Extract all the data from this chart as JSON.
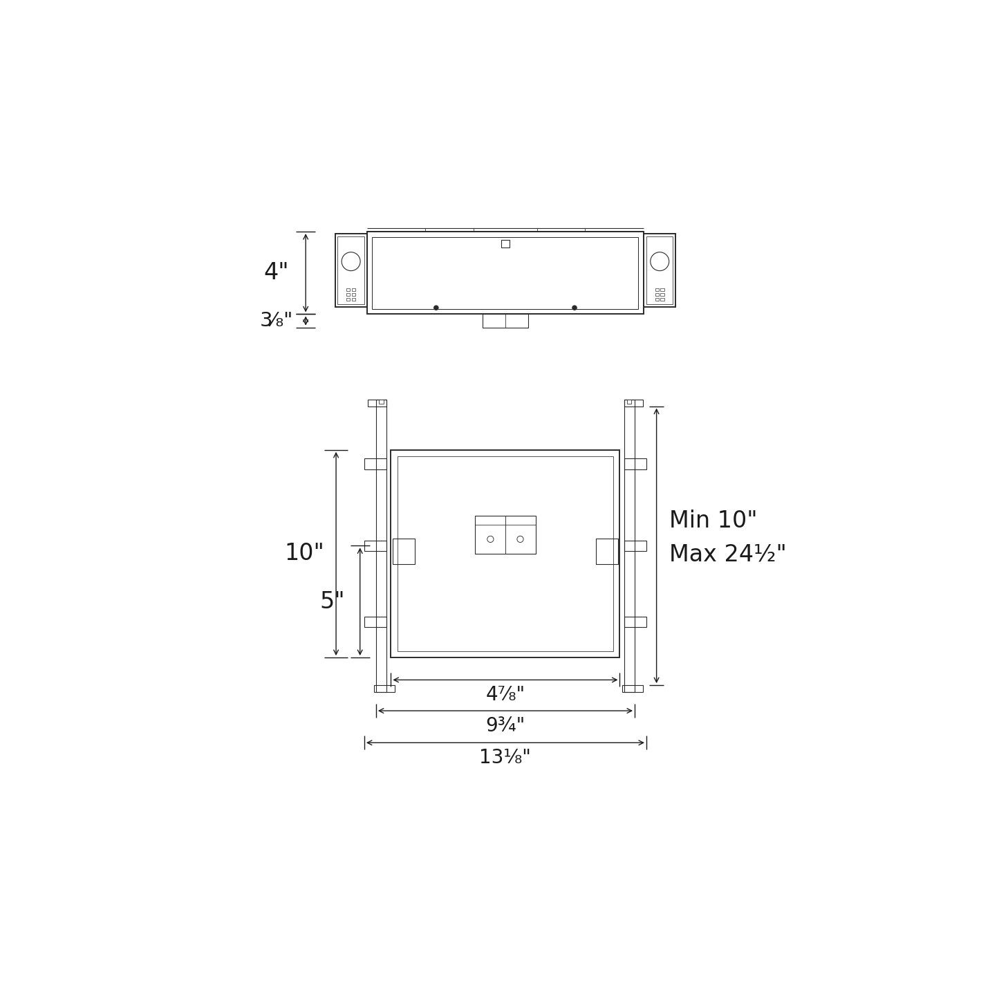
{
  "bg_color": "#ffffff",
  "line_color": "#2a2a2a",
  "dim_color": "#1a1a1a",
  "lw_main": 1.4,
  "lw_thin": 0.8,
  "lw_dim": 1.0,
  "font_size_large": 24,
  "font_size_medium": 20,
  "labels": {
    "dim_4": "4\"",
    "dim_3_8": "3⁄₈\"",
    "dim_10": "10\"",
    "dim_5": "5\"",
    "dim_4_7_8": "4⅞\"",
    "dim_9_3_4": "9¾\"",
    "dim_13_1_8": "13⅛\"",
    "dim_min_max": "Min 10\"\nMax 24½\""
  }
}
